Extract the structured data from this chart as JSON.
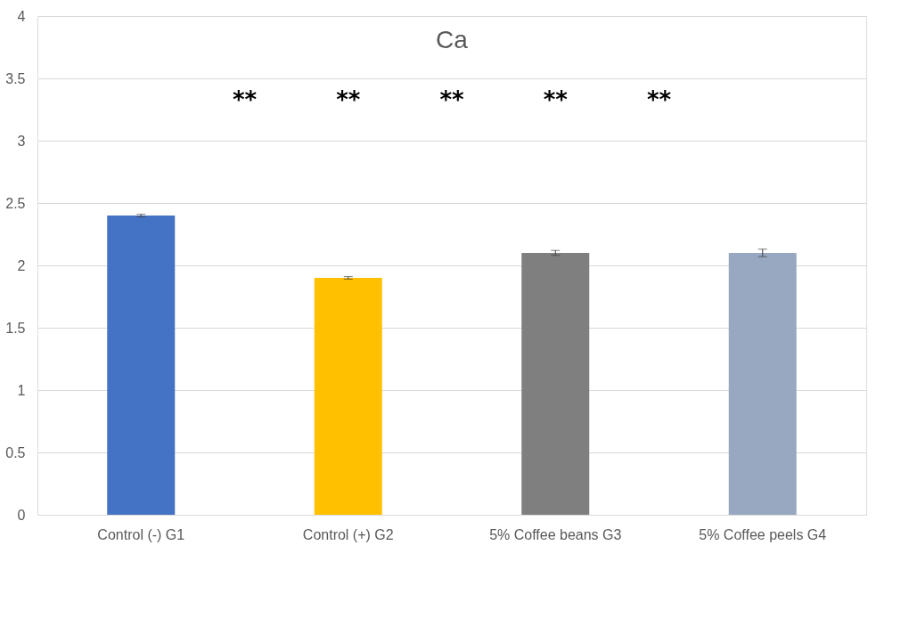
{
  "chart_data": {
    "type": "bar",
    "title": "Ca",
    "categories": [
      "Control (-) G1",
      "Control (+) G2",
      "5% Coffee beans G3",
      "5% Coffee peels G4"
    ],
    "values": [
      2.4,
      1.9,
      2.1,
      2.1
    ],
    "colors": [
      "#4472c4",
      "#ffc000",
      "#7f7f7f",
      "#97a8c0"
    ],
    "errors": [
      0.01,
      0.01,
      0.02,
      0.03
    ],
    "ylim": [
      0,
      4
    ],
    "yticks": [
      0,
      0.5,
      1,
      1.5,
      2,
      2.5,
      3,
      3.5,
      4
    ],
    "grid": "y",
    "annotations": [
      "**",
      "**",
      "**",
      "**",
      "**"
    ]
  }
}
